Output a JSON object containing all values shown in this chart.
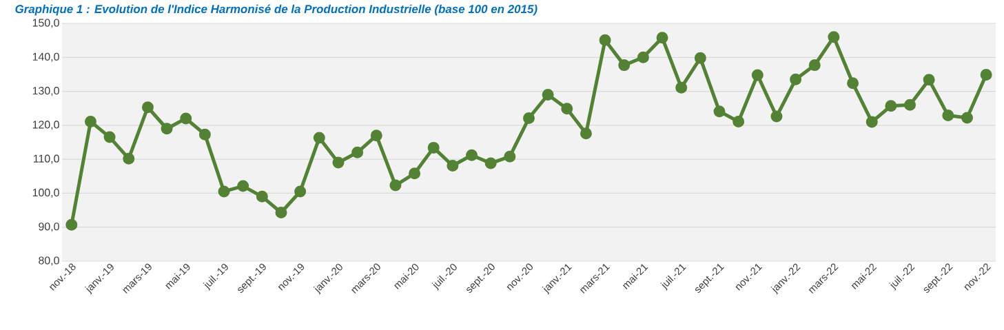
{
  "chart_data": {
    "type": "line",
    "title": "Graphique 1 : Evolution de l'Indice Harmonisé de la Production Industrielle (base 100 en 2015)",
    "categories": [
      "nov.-18",
      null,
      "janv.-19",
      null,
      "mars-19",
      null,
      "mai-19",
      null,
      "juil.-19",
      null,
      "sept.-19",
      null,
      "nov.-19",
      null,
      "janv.-20",
      null,
      "mars-20",
      null,
      "mai-20",
      null,
      "juil.-20",
      null,
      "sept.-20",
      null,
      "nov.-20",
      null,
      "janv.-21",
      null,
      "mars-21",
      null,
      "mai-21",
      null,
      "juil.-21",
      null,
      "sept.-21",
      null,
      "nov.-21",
      null,
      "janv.-22",
      null,
      "mars-22",
      null,
      "mai-22",
      null,
      "juil.-22",
      null,
      "sept.-22",
      null,
      "nov.-22"
    ],
    "series": [
      {
        "color": "#548235",
        "values": [
          90.7,
          121.1,
          116.5,
          110.2,
          125.3,
          119.0,
          122.0,
          117.3,
          100.5,
          102.1,
          99.0,
          94.3,
          100.5,
          116.3,
          109.0,
          112.0,
          117.0,
          102.3,
          105.8,
          113.4,
          108.1,
          111.2,
          108.8,
          110.8,
          122.1,
          129.0,
          124.9,
          117.6,
          145.1,
          137.7,
          140.0,
          145.8,
          131.1,
          139.8,
          124.1,
          121.1,
          134.8,
          122.6,
          133.5,
          137.7,
          146.0,
          132.4,
          121.0,
          125.7,
          126.0,
          133.4,
          122.9,
          122.2,
          134.9
        ]
      }
    ],
    "ylim": [
      80,
      150
    ],
    "yticks": [
      {
        "value": 80,
        "label": "80,0"
      },
      {
        "value": 90,
        "label": "90,0"
      },
      {
        "value": 100,
        "label": "100,0"
      },
      {
        "value": 110,
        "label": "110,0"
      },
      {
        "value": 120,
        "label": "120,0"
      },
      {
        "value": 130,
        "label": "130,0"
      },
      {
        "value": 140,
        "label": "140,0"
      },
      {
        "value": 150,
        "label": "150,0"
      }
    ],
    "grid": "y",
    "marker": "circle",
    "line_style": "solid"
  }
}
